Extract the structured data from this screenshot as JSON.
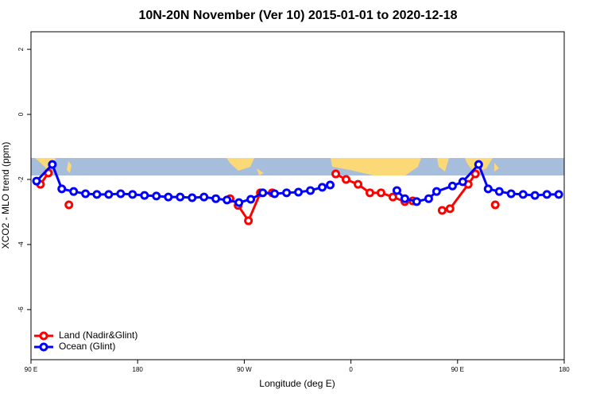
{
  "chart_data": {
    "type": "line",
    "title": "10N-20N November (Ver 10)   2015-01-01 to 2020-12-18",
    "x_label": "Longitude (deg E)",
    "y_label": "XCO2 - MLO trend (ppm)",
    "xlim": [
      90,
      540
    ],
    "xticks": [
      {
        "value": 90,
        "label": "90 E"
      },
      {
        "value": 180,
        "label": "180"
      },
      {
        "value": 270,
        "label": "90 W"
      },
      {
        "value": 360,
        "label": "0"
      },
      {
        "value": 450,
        "label": "90 E"
      },
      {
        "value": 540,
        "label": "180"
      }
    ],
    "ylim": [
      -7.54,
      2.54
    ],
    "yticks": [
      2,
      0,
      -2,
      -4,
      -6
    ],
    "legend": "bottom-left",
    "series": [
      {
        "name": "Land (Nadir&Glint)",
        "color": "#ff0000",
        "x": [
          98,
          104.7,
          null,
          122,
          null,
          258,
          null,
          264.8,
          273.5,
          283.6,
          293.6,
          null,
          347.2,
          355.9,
          366,
          376,
          385.4,
          395.4,
          405.5,
          412.2,
          null,
          437,
          443.6,
          459,
          465,
          null,
          481.8
        ],
        "values": [
          -2.15,
          -1.8,
          null,
          -2.78,
          null,
          -2.59,
          null,
          -2.8,
          -3.27,
          -2.41,
          -2.41,
          null,
          -1.83,
          -2.0,
          -2.15,
          -2.41,
          -2.41,
          -2.54,
          -2.68,
          -2.66,
          null,
          -2.95,
          -2.9,
          -2.15,
          -1.83,
          null,
          -2.78
        ]
      },
      {
        "name": "Ocean (Glint)",
        "color": "#0000ff",
        "x": [
          94.7,
          108,
          116,
          126,
          136,
          145.6,
          155.6,
          165.7,
          175.7,
          185.8,
          195.8,
          205.9,
          215.9,
          226,
          236,
          246,
          255.4,
          265.5,
          275.5,
          285.6,
          295.6,
          305.7,
          315.7,
          325.8,
          335.8,
          342.5,
          null,
          398.8,
          405.5,
          415.5,
          425.6,
          432.3,
          445.7,
          454.4,
          467.8,
          475.8,
          485.2,
          495.2,
          505.3,
          515.3,
          525.4,
          535.4
        ],
        "values": [
          -2.05,
          -1.54,
          -2.29,
          -2.37,
          -2.44,
          -2.46,
          -2.46,
          -2.44,
          -2.46,
          -2.49,
          -2.51,
          -2.54,
          -2.54,
          -2.56,
          -2.54,
          -2.59,
          -2.63,
          -2.71,
          -2.61,
          -2.41,
          -2.44,
          -2.41,
          -2.39,
          -2.34,
          -2.24,
          -2.17,
          null,
          -2.34,
          -2.59,
          -2.68,
          -2.59,
          -2.37,
          -2.2,
          -2.07,
          -1.54,
          -2.29,
          -2.37,
          -2.44,
          -2.46,
          -2.49,
          -2.46,
          -2.46
        ]
      }
    ]
  }
}
